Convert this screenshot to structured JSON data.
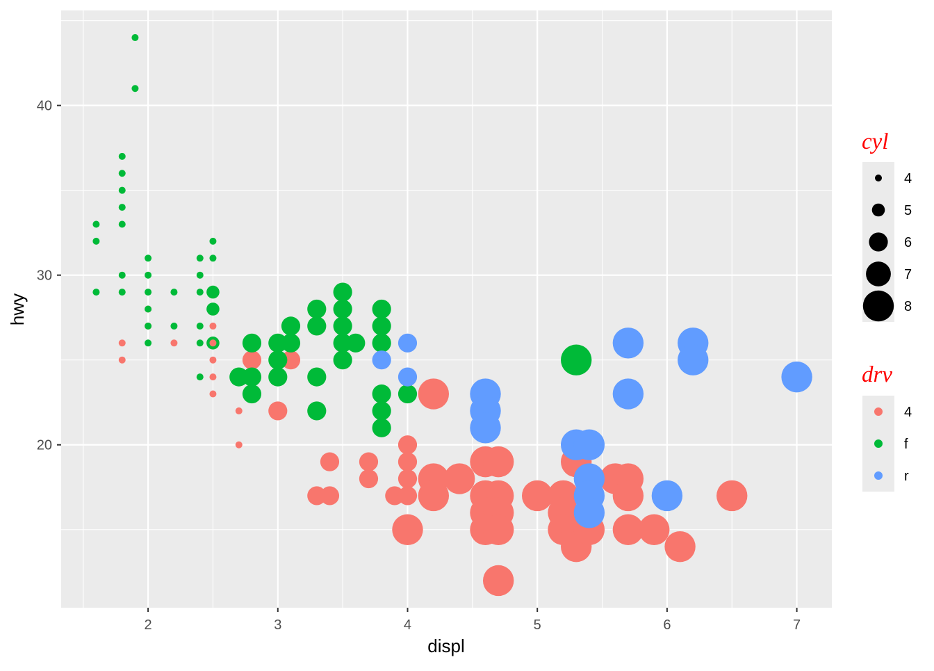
{
  "chart_data": {
    "type": "scatter",
    "xlabel": "displ",
    "ylabel": "hwy",
    "xlim": [
      1.33,
      7.27
    ],
    "ylim": [
      10.4,
      45.6
    ],
    "x_ticks": [
      2,
      3,
      4,
      5,
      6,
      7
    ],
    "x_tick_labels": [
      "2",
      "3",
      "4",
      "5",
      "6",
      "7"
    ],
    "y_ticks": [
      20,
      30,
      40
    ],
    "y_tick_labels": [
      "20",
      "30",
      "40"
    ],
    "grid": true,
    "panel_background": "#ebebeb",
    "legend_placement": "right",
    "size_legend": {
      "title": "cyl",
      "entries": [
        {
          "label": "4",
          "value": 4
        },
        {
          "label": "5",
          "value": 5
        },
        {
          "label": "6",
          "value": 6
        },
        {
          "label": "7",
          "value": 7
        },
        {
          "label": "8",
          "value": 8
        }
      ]
    },
    "color_legend": {
      "title": "drv",
      "entries": [
        {
          "label": "4",
          "color": "#F8766D"
        },
        {
          "label": "f",
          "color": "#00BA38"
        },
        {
          "label": "r",
          "color": "#619CFF"
        }
      ]
    },
    "columns": [
      "displ",
      "hwy",
      "cyl",
      "drv"
    ],
    "points": [
      [
        1.8,
        26,
        4,
        "4"
      ],
      [
        1.8,
        25,
        4,
        "4"
      ],
      [
        2.0,
        28,
        4,
        "4"
      ],
      [
        2.0,
        27,
        4,
        "4"
      ],
      [
        2.2,
        26,
        4,
        "4"
      ],
      [
        2.5,
        27,
        4,
        "4"
      ],
      [
        2.5,
        26,
        4,
        "4"
      ],
      [
        2.5,
        25,
        4,
        "4"
      ],
      [
        2.5,
        24,
        4,
        "4"
      ],
      [
        2.5,
        23,
        4,
        "4"
      ],
      [
        2.7,
        22,
        4,
        "4"
      ],
      [
        2.7,
        20,
        4,
        "4"
      ],
      [
        2.8,
        25,
        6,
        "4"
      ],
      [
        3.1,
        25,
        6,
        "4"
      ],
      [
        3.0,
        22,
        6,
        "4"
      ],
      [
        3.4,
        19,
        6,
        "4"
      ],
      [
        3.3,
        17,
        6,
        "4"
      ],
      [
        3.4,
        17,
        6,
        "4"
      ],
      [
        3.7,
        19,
        6,
        "4"
      ],
      [
        3.7,
        18,
        6,
        "4"
      ],
      [
        3.9,
        17,
        6,
        "4"
      ],
      [
        4.0,
        20,
        6,
        "4"
      ],
      [
        4.0,
        19,
        6,
        "4"
      ],
      [
        4.0,
        18,
        6,
        "4"
      ],
      [
        4.0,
        17,
        6,
        "4"
      ],
      [
        4.2,
        23,
        8,
        "4"
      ],
      [
        4.2,
        18,
        8,
        "4"
      ],
      [
        4.2,
        17,
        8,
        "4"
      ],
      [
        4.4,
        18,
        8,
        "4"
      ],
      [
        4.0,
        15,
        8,
        "4"
      ],
      [
        4.6,
        19,
        8,
        "4"
      ],
      [
        4.7,
        19,
        8,
        "4"
      ],
      [
        4.6,
        17,
        8,
        "4"
      ],
      [
        4.7,
        17,
        8,
        "4"
      ],
      [
        4.6,
        16,
        8,
        "4"
      ],
      [
        4.7,
        16,
        8,
        "4"
      ],
      [
        4.6,
        15,
        8,
        "4"
      ],
      [
        4.7,
        15,
        8,
        "4"
      ],
      [
        4.7,
        12,
        8,
        "4"
      ],
      [
        5.0,
        17,
        8,
        "4"
      ],
      [
        5.2,
        17,
        8,
        "4"
      ],
      [
        5.2,
        16,
        8,
        "4"
      ],
      [
        5.2,
        15,
        8,
        "4"
      ],
      [
        5.3,
        19,
        8,
        "4"
      ],
      [
        5.3,
        15,
        8,
        "4"
      ],
      [
        5.3,
        14,
        8,
        "4"
      ],
      [
        5.4,
        15,
        8,
        "4"
      ],
      [
        5.6,
        18,
        8,
        "4"
      ],
      [
        5.7,
        18,
        8,
        "4"
      ],
      [
        5.7,
        17,
        8,
        "4"
      ],
      [
        5.7,
        15,
        8,
        "4"
      ],
      [
        5.9,
        15,
        8,
        "4"
      ],
      [
        6.1,
        14,
        8,
        "4"
      ],
      [
        6.5,
        17,
        8,
        "4"
      ],
      [
        1.6,
        33,
        4,
        "f"
      ],
      [
        1.6,
        32,
        4,
        "f"
      ],
      [
        1.6,
        29,
        4,
        "f"
      ],
      [
        1.8,
        37,
        4,
        "f"
      ],
      [
        1.8,
        36,
        4,
        "f"
      ],
      [
        1.8,
        35,
        4,
        "f"
      ],
      [
        1.8,
        34,
        4,
        "f"
      ],
      [
        1.8,
        33,
        4,
        "f"
      ],
      [
        1.8,
        30,
        4,
        "f"
      ],
      [
        1.8,
        29,
        4,
        "f"
      ],
      [
        1.9,
        44,
        4,
        "f"
      ],
      [
        1.9,
        41,
        4,
        "f"
      ],
      [
        2.0,
        31,
        4,
        "f"
      ],
      [
        2.0,
        30,
        4,
        "f"
      ],
      [
        2.0,
        29,
        4,
        "f"
      ],
      [
        2.0,
        28,
        4,
        "f"
      ],
      [
        2.0,
        27,
        4,
        "f"
      ],
      [
        2.0,
        26,
        4,
        "f"
      ],
      [
        2.2,
        29,
        4,
        "f"
      ],
      [
        2.2,
        27,
        4,
        "f"
      ],
      [
        2.4,
        31,
        4,
        "f"
      ],
      [
        2.4,
        30,
        4,
        "f"
      ],
      [
        2.4,
        29,
        4,
        "f"
      ],
      [
        2.4,
        27,
        4,
        "f"
      ],
      [
        2.4,
        26,
        4,
        "f"
      ],
      [
        2.4,
        24,
        4,
        "f"
      ],
      [
        2.5,
        32,
        4,
        "f"
      ],
      [
        2.5,
        31,
        4,
        "f"
      ],
      [
        2.5,
        29,
        5,
        "f"
      ],
      [
        2.5,
        28,
        5,
        "f"
      ],
      [
        2.5,
        26,
        5,
        "f"
      ],
      [
        2.7,
        24,
        6,
        "f"
      ],
      [
        2.8,
        26,
        6,
        "f"
      ],
      [
        2.8,
        24,
        6,
        "f"
      ],
      [
        2.8,
        23,
        6,
        "f"
      ],
      [
        3.0,
        26,
        6,
        "f"
      ],
      [
        3.0,
        25,
        6,
        "f"
      ],
      [
        3.0,
        24,
        6,
        "f"
      ],
      [
        3.1,
        27,
        6,
        "f"
      ],
      [
        3.1,
        26,
        6,
        "f"
      ],
      [
        3.3,
        28,
        6,
        "f"
      ],
      [
        3.3,
        27,
        6,
        "f"
      ],
      [
        3.3,
        24,
        6,
        "f"
      ],
      [
        3.3,
        22,
        6,
        "f"
      ],
      [
        3.5,
        29,
        6,
        "f"
      ],
      [
        3.5,
        28,
        6,
        "f"
      ],
      [
        3.5,
        27,
        6,
        "f"
      ],
      [
        3.5,
        26,
        6,
        "f"
      ],
      [
        3.5,
        25,
        6,
        "f"
      ],
      [
        3.6,
        26,
        6,
        "f"
      ],
      [
        3.8,
        28,
        6,
        "f"
      ],
      [
        3.8,
        27,
        6,
        "f"
      ],
      [
        3.8,
        26,
        6,
        "f"
      ],
      [
        3.8,
        23,
        6,
        "f"
      ],
      [
        3.8,
        22,
        6,
        "f"
      ],
      [
        3.8,
        21,
        6,
        "f"
      ],
      [
        4.0,
        23,
        6,
        "f"
      ],
      [
        5.3,
        25,
        8,
        "f"
      ],
      [
        3.8,
        25,
        6,
        "r"
      ],
      [
        4.0,
        26,
        6,
        "r"
      ],
      [
        4.0,
        24,
        6,
        "r"
      ],
      [
        4.6,
        23,
        8,
        "r"
      ],
      [
        4.6,
        22,
        8,
        "r"
      ],
      [
        4.6,
        21,
        8,
        "r"
      ],
      [
        5.3,
        20,
        8,
        "r"
      ],
      [
        5.4,
        20,
        8,
        "r"
      ],
      [
        5.4,
        18,
        8,
        "r"
      ],
      [
        5.4,
        17,
        8,
        "r"
      ],
      [
        5.4,
        16,
        8,
        "r"
      ],
      [
        5.7,
        26,
        8,
        "r"
      ],
      [
        5.7,
        23,
        8,
        "r"
      ],
      [
        6.0,
        17,
        8,
        "r"
      ],
      [
        6.2,
        26,
        8,
        "r"
      ],
      [
        6.2,
        25,
        8,
        "r"
      ],
      [
        7.0,
        24,
        8,
        "r"
      ]
    ]
  }
}
